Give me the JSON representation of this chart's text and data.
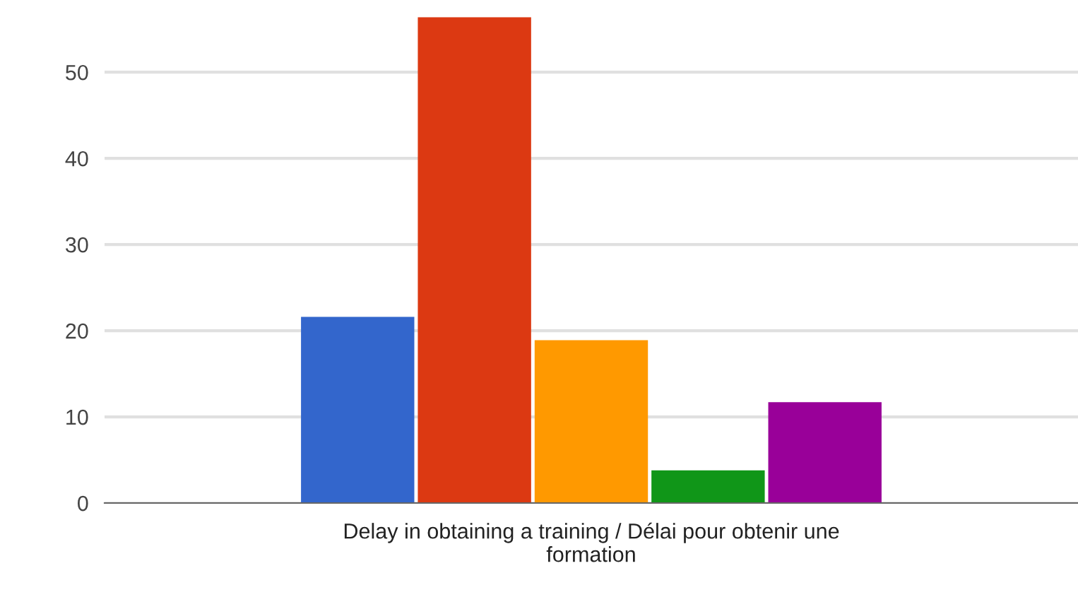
{
  "chart_data": {
    "type": "bar",
    "categories": [
      "Delay in obtaining a training / Délai pour obtenir une formation"
    ],
    "series": [
      {
        "color": "#3366cc",
        "values": [
          21.6
        ]
      },
      {
        "color": "#dc3912",
        "values": [
          56.4
        ]
      },
      {
        "color": "#ff9900",
        "values": [
          18.9
        ]
      },
      {
        "color": "#109618",
        "values": [
          3.8
        ]
      },
      {
        "color": "#990099",
        "values": [
          11.7
        ]
      }
    ],
    "ylim": [
      0,
      56.4
    ],
    "yticks": [
      0,
      10,
      20,
      30,
      40,
      50
    ],
    "grid": "y"
  }
}
